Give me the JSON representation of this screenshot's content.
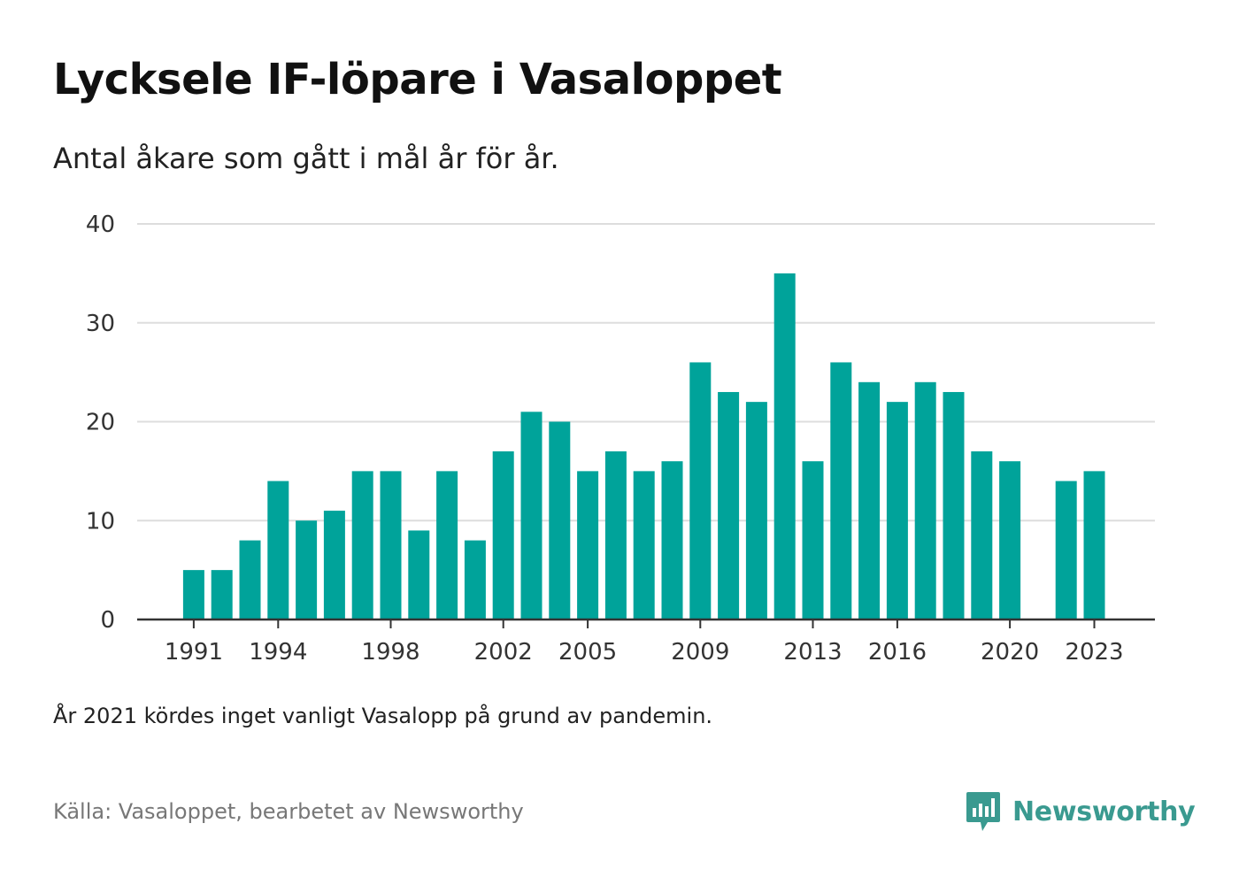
{
  "header": {
    "title": "Lycksele IF-löpare i Vasaloppet",
    "subtitle": "Antal åkare som gått i mål år för år."
  },
  "footer": {
    "note": "År 2021 kördes inget vanligt Vasalopp på grund av pandemin.",
    "source": "Källa: Vasaloppet, bearbetet av Newsworthy",
    "brand": "Newsworthy"
  },
  "colors": {
    "bar": "#00a39a",
    "grid": "#dddddd",
    "axis": "#333333",
    "brand": "#3a9a90"
  },
  "chart_data": {
    "type": "bar",
    "title": "Lycksele IF-löpare i Vasaloppet",
    "subtitle": "Antal åkare som gått i mål år för år.",
    "xlabel": "",
    "ylabel": "",
    "ylim": [
      0,
      40
    ],
    "yticks": [
      0,
      10,
      20,
      30,
      40
    ],
    "grid": true,
    "legend": "none",
    "x": [
      1991,
      1992,
      1993,
      1994,
      1995,
      1996,
      1997,
      1998,
      1999,
      2000,
      2001,
      2002,
      2003,
      2004,
      2005,
      2006,
      2007,
      2008,
      2009,
      2010,
      2011,
      2012,
      2013,
      2014,
      2015,
      2016,
      2017,
      2018,
      2019,
      2020,
      2021,
      2022,
      2023
    ],
    "values": [
      5,
      5,
      8,
      14,
      10,
      11,
      15,
      15,
      9,
      15,
      8,
      17,
      21,
      20,
      15,
      17,
      15,
      16,
      26,
      23,
      22,
      35,
      16,
      26,
      24,
      22,
      24,
      23,
      17,
      16,
      null,
      14,
      15
    ],
    "xtick_labels": [
      "1991",
      "1994",
      "1998",
      "2002",
      "2005",
      "2009",
      "2013",
      "2016",
      "2020",
      "2023"
    ]
  }
}
